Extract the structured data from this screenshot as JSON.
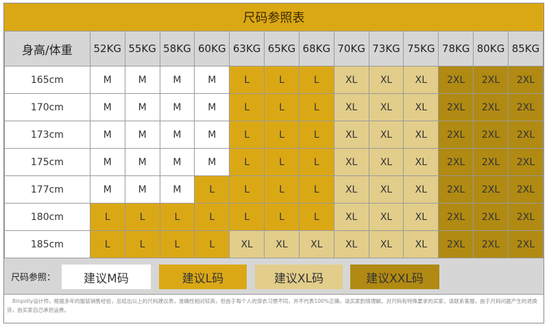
{
  "title": "尺码参照表",
  "header": {
    "corner": "身高/体重",
    "weights": [
      "52KG",
      "55KG",
      "58KG",
      "60KG",
      "63KG",
      "65KG",
      "68KG",
      "70KG",
      "73KG",
      "75KG",
      "78KG",
      "80KG",
      "85KG"
    ]
  },
  "rows": [
    {
      "height": "165cm",
      "sizes": [
        "M",
        "M",
        "M",
        "M",
        "L",
        "L",
        "L",
        "XL",
        "XL",
        "XL",
        "2XL",
        "2XL",
        "2XL"
      ]
    },
    {
      "height": "170cm",
      "sizes": [
        "M",
        "M",
        "M",
        "M",
        "L",
        "L",
        "L",
        "XL",
        "XL",
        "XL",
        "2XL",
        "2XL",
        "2XL"
      ]
    },
    {
      "height": "173cm",
      "sizes": [
        "M",
        "M",
        "M",
        "M",
        "L",
        "L",
        "L",
        "XL",
        "XL",
        "XL",
        "2XL",
        "2XL",
        "2XL"
      ]
    },
    {
      "height": "175cm",
      "sizes": [
        "M",
        "M",
        "M",
        "M",
        "L",
        "L",
        "L",
        "XL",
        "XL",
        "XL",
        "2XL",
        "2XL",
        "2XL"
      ]
    },
    {
      "height": "177cm",
      "sizes": [
        "M",
        "M",
        "M",
        "L",
        "L",
        "L",
        "L",
        "XL",
        "XL",
        "XL",
        "2XL",
        "2XL",
        "2XL"
      ]
    },
    {
      "height": "180cm",
      "sizes": [
        "L",
        "L",
        "L",
        "L",
        "L",
        "L",
        "L",
        "XL",
        "XL",
        "XL",
        "2XL",
        "2XL",
        "2XL"
      ]
    },
    {
      "height": "185cm",
      "sizes": [
        "L",
        "L",
        "L",
        "L",
        "XL",
        "XL",
        "XL",
        "XL",
        "XL",
        "XL",
        "2XL",
        "2XL",
        "2XL"
      ]
    }
  ],
  "legend": {
    "label": "尺码参照：",
    "m": "建议M码",
    "l": "建议L码",
    "xl": "建议XL码",
    "xxl": "建议XXL码"
  },
  "colors": {
    "gold": "#dba815",
    "light_gold": "#e2cd8a",
    "dark_gold": "#b08a12",
    "header_gray": "#d6d6d6"
  },
  "note": "Binpolly设计师，根据多年的服装销售经验，总结出以上的尺码建议表，准确性相对较高，但由于每个人的穿衣习惯不同，并不代表100%正确，请买家酌情理解。对尺码有特殊要求的买家，请联系客服，由于尺码问题产生的退换货，由买家自己承担运费。"
}
